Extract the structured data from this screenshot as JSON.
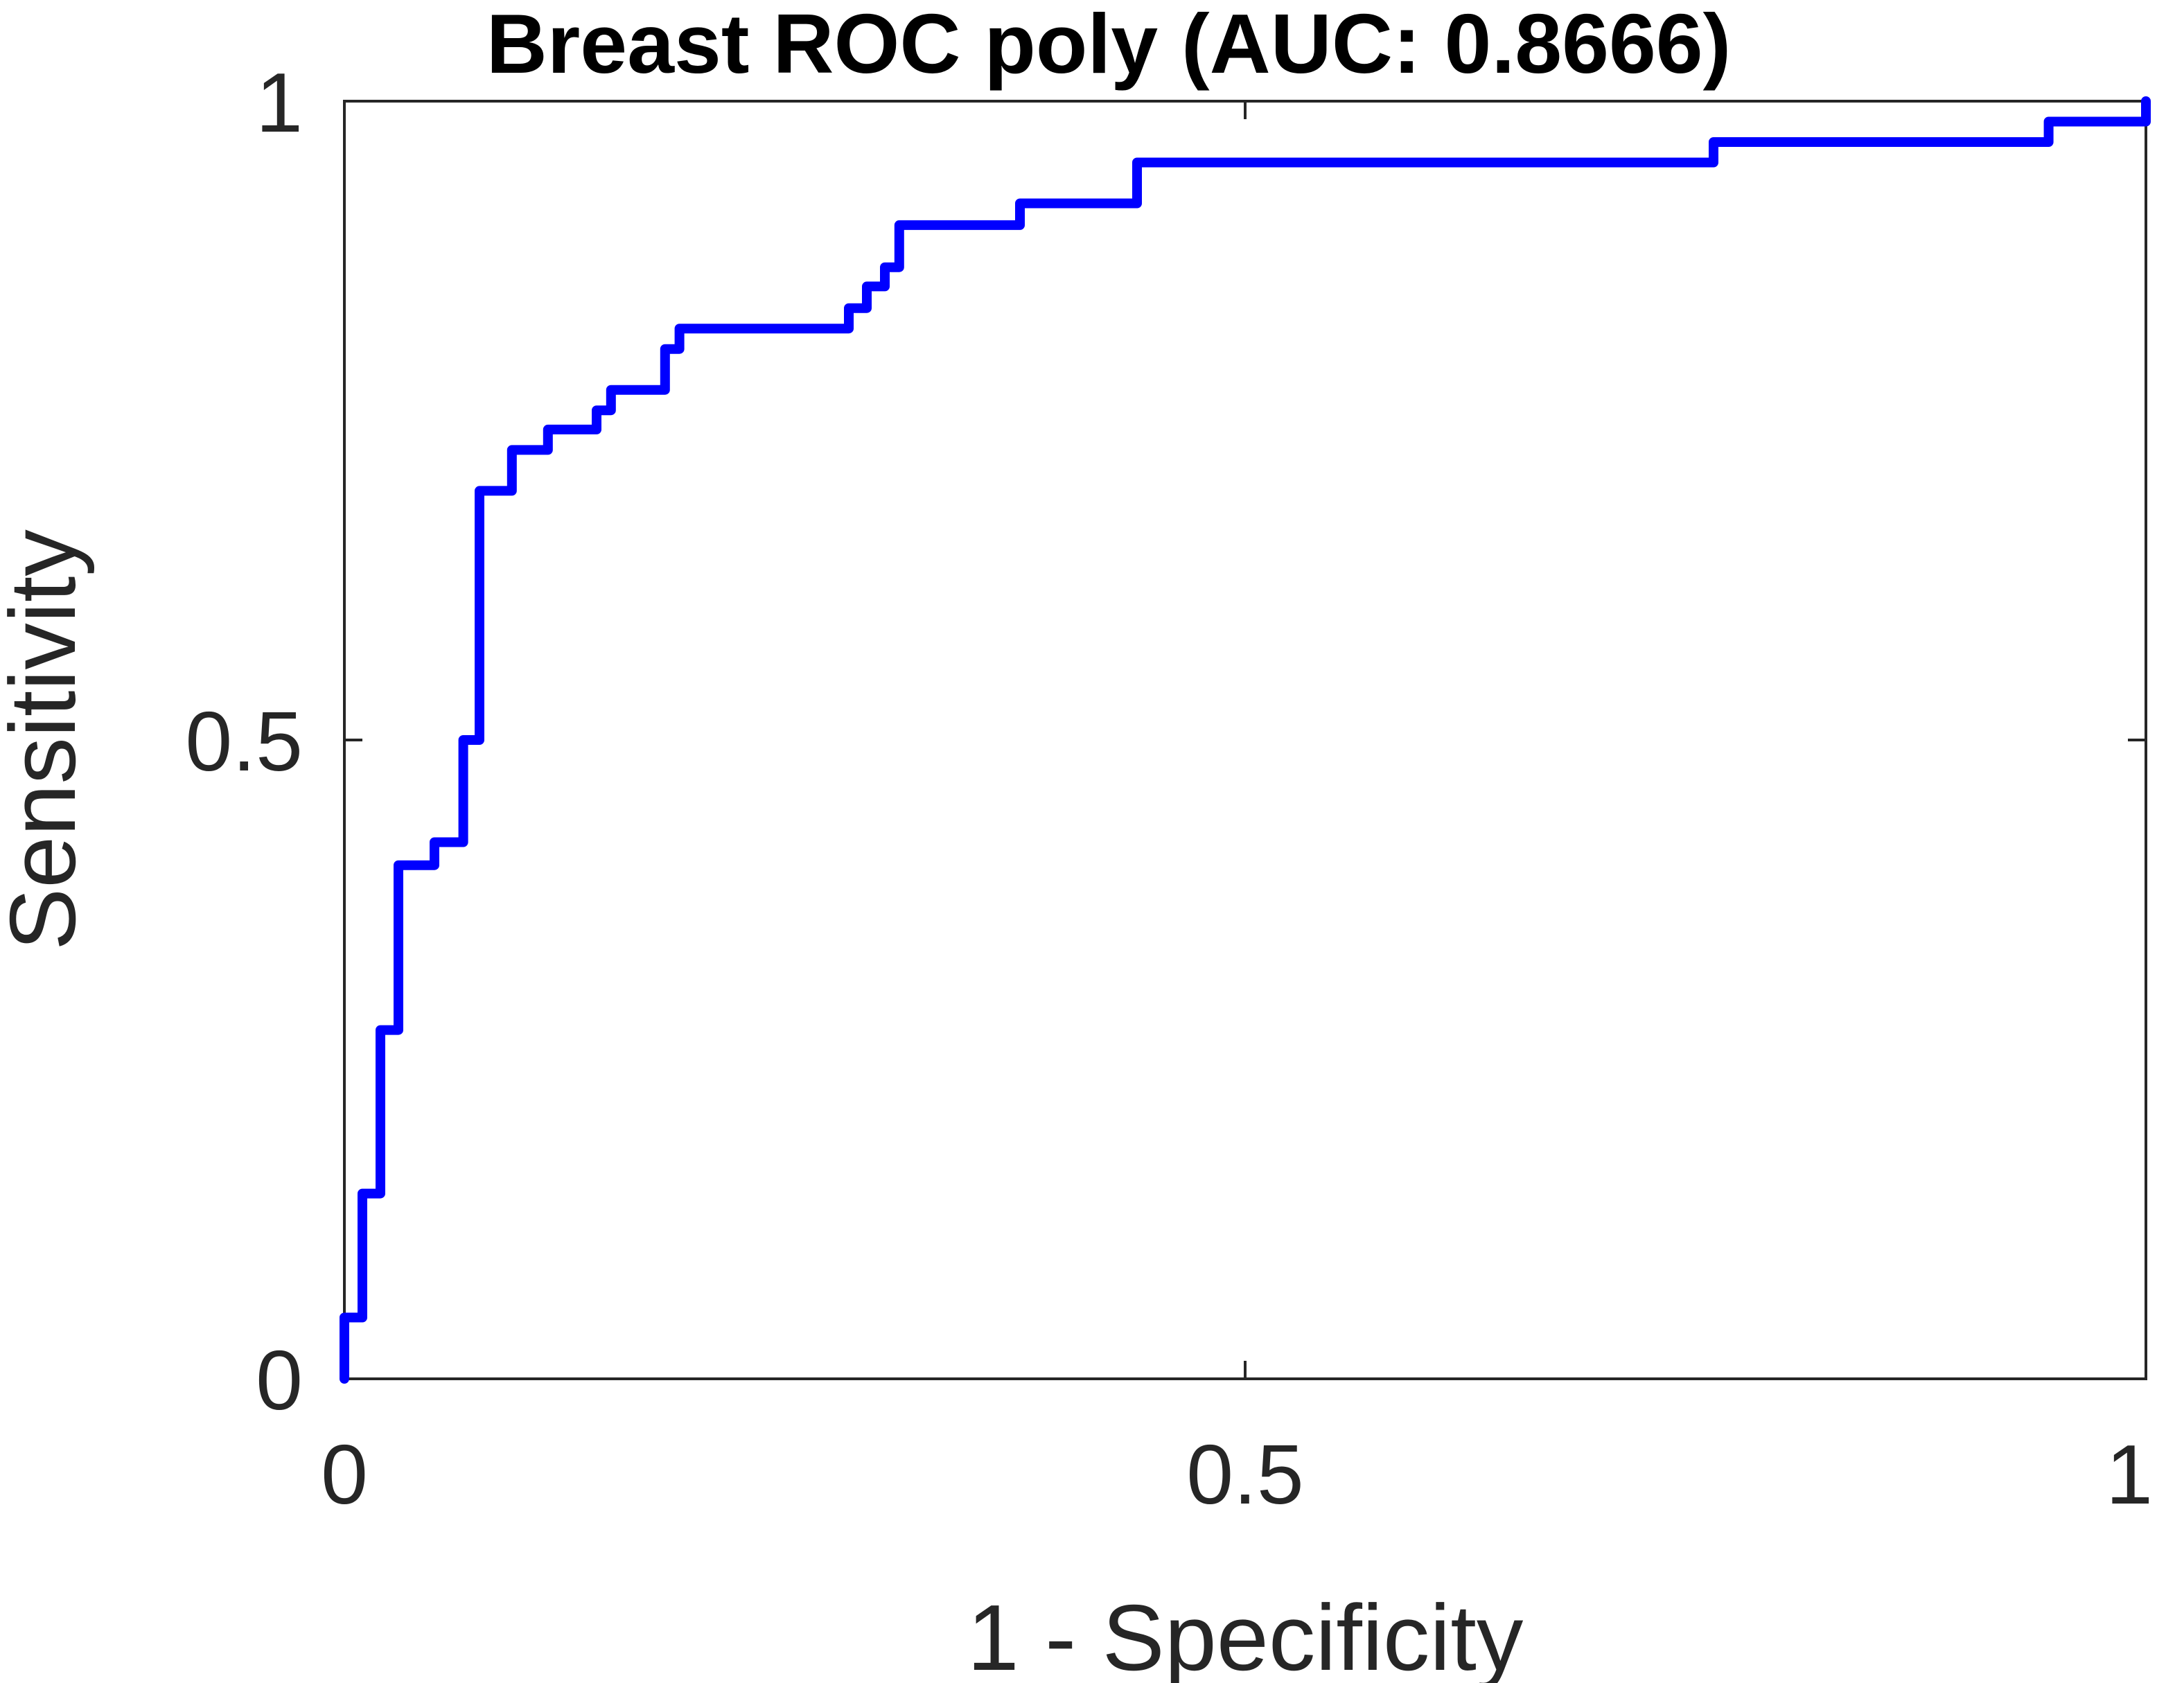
{
  "chart_data": {
    "type": "line",
    "title": "Breast ROC poly (AUC: 0.8666)",
    "xlabel": "1 - Specificity",
    "ylabel": "Sensitivity",
    "xlim": [
      0,
      1
    ],
    "ylim": [
      0,
      1
    ],
    "xticks": [
      0,
      0.5,
      1
    ],
    "yticks": [
      0,
      0.5,
      1
    ],
    "xtick_labels": [
      "0",
      "0.5",
      "1"
    ],
    "ytick_labels": [
      "0",
      "0.5",
      "1"
    ],
    "grid": false,
    "box": true,
    "series": [
      {
        "color": "#0000ff",
        "step": true,
        "x": [
          0,
          0,
          0.01,
          0.01,
          0.02,
          0.02,
          0.03,
          0.03,
          0.05,
          0.05,
          0.066,
          0.066,
          0.075,
          0.075,
          0.093,
          0.093,
          0.113,
          0.113,
          0.14,
          0.14,
          0.148,
          0.148,
          0.178,
          0.178,
          0.186,
          0.186,
          0.28,
          0.28,
          0.29,
          0.29,
          0.3,
          0.3,
          0.308,
          0.308,
          0.375,
          0.375,
          0.44,
          0.44,
          0.76,
          0.76,
          0.946,
          0.946,
          1,
          1
        ],
        "y": [
          0,
          0.048,
          0.048,
          0.145,
          0.145,
          0.273,
          0.273,
          0.402,
          0.402,
          0.42,
          0.42,
          0.5,
          0.5,
          0.695,
          0.695,
          0.727,
          0.727,
          0.743,
          0.743,
          0.758,
          0.758,
          0.774,
          0.774,
          0.806,
          0.806,
          0.822,
          0.822,
          0.838,
          0.838,
          0.855,
          0.855,
          0.87,
          0.87,
          0.903,
          0.903,
          0.92,
          0.92,
          0.952,
          0.952,
          0.968,
          0.968,
          0.984,
          0.984,
          1.0
        ]
      }
    ]
  }
}
